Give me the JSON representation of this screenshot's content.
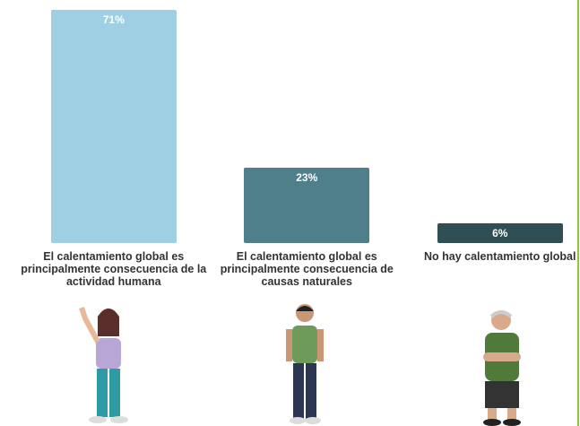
{
  "chart_data": {
    "type": "bar",
    "categories": [
      "El calentamiento global es principalmente consecuencia de la actividad humana",
      "El calentamiento global es principalmente consecuencia de causas naturales",
      "No hay calentamiento global"
    ],
    "values": [
      71,
      23,
      6
    ],
    "value_labels": [
      "71%",
      "23%",
      "6%"
    ],
    "colors": [
      "#9fcfe3",
      "#4f7f8b",
      "#2f4f55"
    ]
  }
}
